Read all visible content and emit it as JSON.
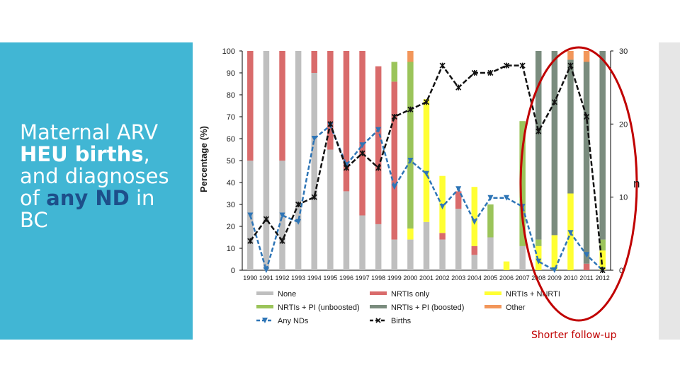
{
  "slide": {
    "title_line1": "Maternal ARV",
    "title_line2_bold": "HEU births",
    "title_line2_tail": ",",
    "title_line3": "and diagnoses",
    "title_line4_pre": "of ",
    "title_line4_accent": "any ND",
    "title_line4_post": " in",
    "title_line5": "BC",
    "footnote": "Shorter follow-up",
    "stray_label": "n"
  },
  "colors": {
    "none": "#bfbfbf",
    "nrtis_only": "#d96b6b",
    "nnrti": "#ffff33",
    "pi_unboosted": "#9bc45a",
    "pi_boosted": "#7a8c7e",
    "other": "#f2965a",
    "any_nds": "#2e75b6",
    "births": "#111111",
    "highlight": "#c00000"
  },
  "chart_data": {
    "type": "bar",
    "stacked": true,
    "ylabel": "Percentage (%)",
    "ylim": [
      0,
      100
    ],
    "yticks": [
      "0",
      "10",
      "20",
      "30",
      "40",
      "50",
      "60",
      "70",
      "80",
      "90",
      "100"
    ],
    "y2lim": [
      0,
      30
    ],
    "y2ticks": [
      "0",
      "10",
      "20",
      "30"
    ],
    "categories": [
      "1990",
      "1991",
      "1992",
      "1993",
      "1994",
      "1995",
      "1996",
      "1997",
      "1998",
      "1999",
      "2000",
      "2001",
      "2002",
      "2003",
      "2004",
      "2005",
      "2006",
      "2007",
      "2008",
      "2009",
      "2010",
      "2011",
      "2012"
    ],
    "series": [
      {
        "name": "None",
        "values": [
          50,
          100,
          50,
          100,
          90,
          55,
          36,
          25,
          21,
          14,
          14,
          22,
          14,
          28,
          7,
          15,
          0,
          11,
          0,
          0,
          0,
          0,
          0
        ]
      },
      {
        "name": "NRTIs only",
        "values": [
          50,
          0,
          50,
          0,
          10,
          45,
          64,
          75,
          72,
          72,
          0,
          0,
          3,
          8,
          4,
          0,
          0,
          0,
          0,
          0,
          0,
          3,
          0
        ]
      },
      {
        "name": "NRTIs + NNRTI",
        "values": [
          0,
          0,
          0,
          0,
          0,
          0,
          0,
          0,
          0,
          0,
          5,
          56,
          26,
          0,
          27,
          0,
          4,
          0,
          11,
          16,
          35,
          0,
          9
        ]
      },
      {
        "name": "NRTIs + PI (unboosted)",
        "values": [
          0,
          0,
          0,
          0,
          0,
          0,
          0,
          0,
          0,
          9,
          76,
          0,
          0,
          0,
          0,
          15,
          0,
          57,
          3,
          0,
          0,
          0,
          5
        ]
      },
      {
        "name": "NRTIs + PI (boosted)",
        "values": [
          0,
          0,
          0,
          0,
          0,
          0,
          0,
          0,
          0,
          0,
          0,
          0,
          0,
          0,
          0,
          0,
          0,
          0,
          86,
          84,
          61,
          92,
          86
        ]
      },
      {
        "name": "Other",
        "values": [
          0,
          0,
          0,
          0,
          0,
          0,
          0,
          0,
          0,
          0,
          5,
          0,
          0,
          0,
          0,
          0,
          0,
          0,
          0,
          0,
          4,
          5,
          0
        ]
      }
    ],
    "lines": [
      {
        "name": "Any NDs",
        "axis": "left",
        "values": [
          25,
          0,
          25,
          22,
          60,
          66,
          48,
          57,
          64,
          38,
          50,
          44,
          29,
          37,
          22,
          33,
          33,
          29,
          4,
          0,
          17,
          7,
          0
        ]
      },
      {
        "name": "Births",
        "axis": "right",
        "values": [
          4,
          7,
          4,
          9,
          10,
          20,
          14,
          16,
          14,
          21,
          22,
          23,
          28,
          25,
          27,
          27,
          28,
          28,
          19,
          23,
          28,
          21,
          0
        ]
      }
    ],
    "legend": [
      "None",
      "NRTIs only",
      "NRTIs + NNRTI",
      "NRTIs + PI (unboosted)",
      "NRTIs + PI (boosted)",
      "Other",
      "Any NDs",
      "Births"
    ],
    "legend_position": "bottom",
    "highlight_label": "Shorter follow-up"
  }
}
